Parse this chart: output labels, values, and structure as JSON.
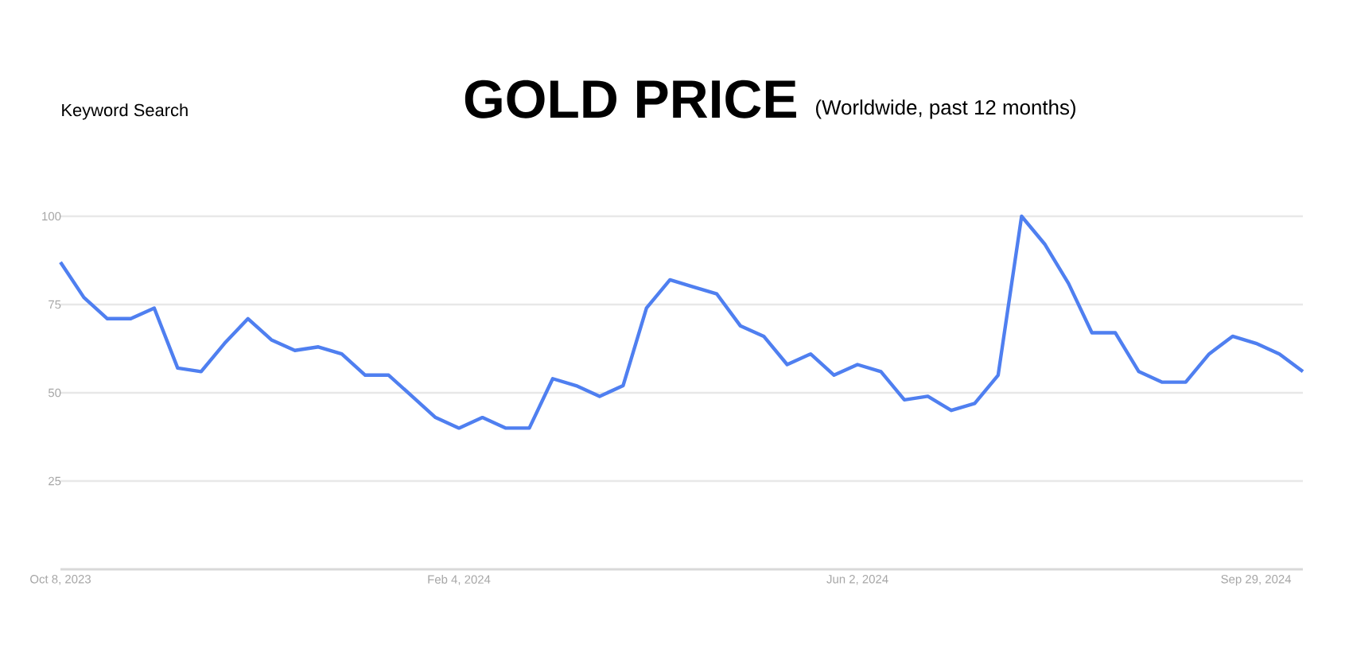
{
  "chart_data": {
    "type": "line",
    "title": "GOLD PRICE",
    "subtitle": "(Worldwide, past 12 months)",
    "annotations": [
      "Keyword Search"
    ],
    "x": [
      "2023-10-08",
      "2023-10-15",
      "2023-10-22",
      "2023-10-29",
      "2023-11-05",
      "2023-11-12",
      "2023-11-19",
      "2023-11-26",
      "2023-12-03",
      "2023-12-10",
      "2023-12-17",
      "2023-12-24",
      "2023-12-31",
      "2024-01-07",
      "2024-01-14",
      "2024-01-21",
      "2024-01-28",
      "2024-02-04",
      "2024-02-11",
      "2024-02-18",
      "2024-02-25",
      "2024-03-03",
      "2024-03-10",
      "2024-03-17",
      "2024-03-24",
      "2024-03-31",
      "2024-04-07",
      "2024-04-14",
      "2024-04-21",
      "2024-04-28",
      "2024-05-05",
      "2024-05-12",
      "2024-05-19",
      "2024-05-26",
      "2024-06-02",
      "2024-06-09",
      "2024-06-16",
      "2024-06-23",
      "2024-06-30",
      "2024-07-07",
      "2024-07-14",
      "2024-07-21",
      "2024-07-28",
      "2024-08-04",
      "2024-08-11",
      "2024-08-18",
      "2024-08-25",
      "2024-09-01",
      "2024-09-08",
      "2024-09-15",
      "2024-09-22",
      "2024-09-29",
      "2024-10-06",
      "2024-10-13"
    ],
    "series": [
      {
        "color": "#4f7ff0",
        "values": [
          87,
          77,
          71,
          71,
          74,
          57,
          56,
          64,
          71,
          65,
          62,
          63,
          61,
          55,
          55,
          49,
          43,
          40,
          43,
          40,
          40,
          54,
          52,
          49,
          52,
          74,
          82,
          80,
          78,
          69,
          66,
          58,
          61,
          55,
          58,
          56,
          48,
          49,
          45,
          47,
          55,
          100,
          92,
          81,
          67,
          67,
          56,
          53,
          53,
          61,
          66,
          64,
          61,
          56
        ]
      }
    ],
    "xlim": [
      "2023-10-08",
      "2024-10-13"
    ],
    "xticks": [
      {
        "value": "2023-10-08",
        "label": "Oct 8, 2023"
      },
      {
        "value": "2024-02-04",
        "label": "Feb 4, 2024"
      },
      {
        "value": "2024-06-02",
        "label": "Jun 2, 2024"
      },
      {
        "value": "2024-09-29",
        "label": "Sep 29, 2024"
      }
    ],
    "ylim": [
      0,
      100
    ],
    "yticks": [
      25,
      50,
      75,
      100
    ],
    "grid": "y",
    "marker": "none",
    "line_style": "solid"
  }
}
